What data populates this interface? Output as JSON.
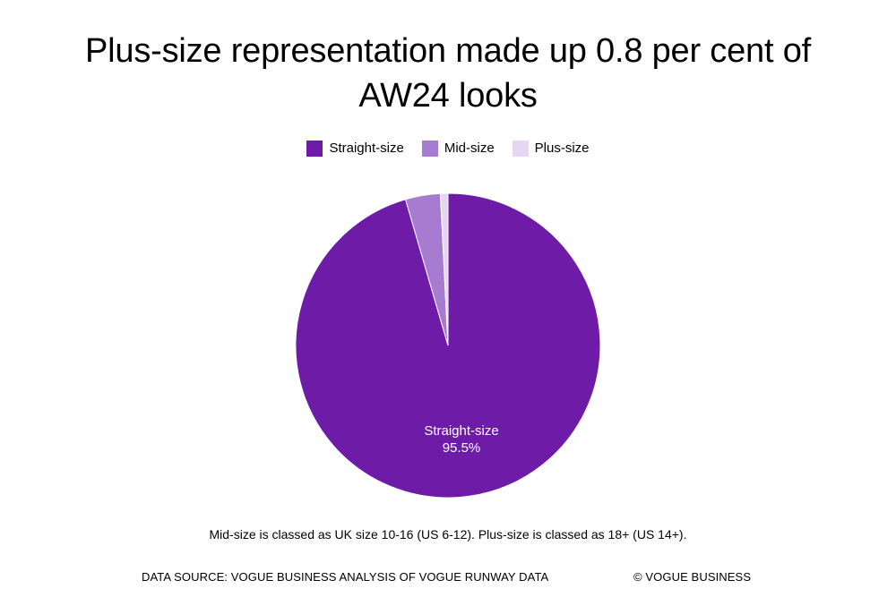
{
  "chart_data": {
    "type": "pie",
    "title": "Plus-size representation made up 0.8 per cent of AW24 looks",
    "legend_position": "top",
    "series": [
      {
        "name": "Straight-size",
        "value": 95.5,
        "color": "#6e1ca8",
        "label_line1": "Straight-size",
        "label_line2": "95.5%"
      },
      {
        "name": "Mid-size",
        "value": 3.7,
        "color": "#a77bd0",
        "label_line1": "",
        "label_line2": ""
      },
      {
        "name": "Plus-size",
        "value": 0.8,
        "color": "#e5d6f1",
        "label_line1": "",
        "label_line2": ""
      }
    ]
  },
  "footnote": "Mid-size is classed as UK size 10-16 (US 6-12). Plus-size is classed as 18+ (US 14+).",
  "source": "DATA SOURCE: VOGUE BUSINESS ANALYSIS OF VOGUE RUNWAY DATA",
  "copyright": "© VOGUE BUSINESS"
}
